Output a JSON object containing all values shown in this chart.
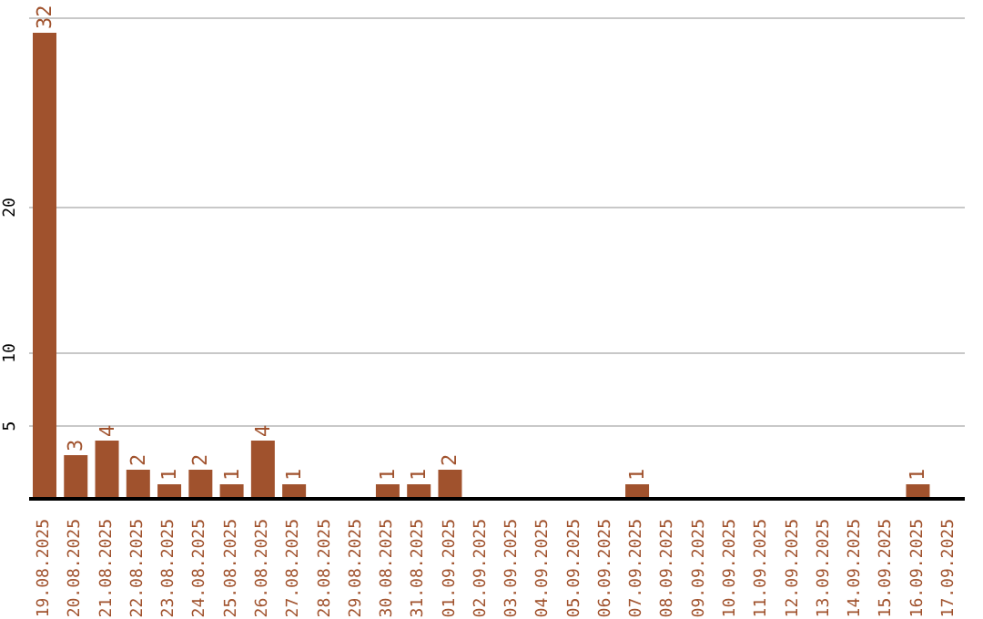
{
  "chart_data": {
    "type": "bar",
    "categories": [
      "19.08.2025",
      "20.08.2025",
      "21.08.2025",
      "22.08.2025",
      "23.08.2025",
      "24.08.2025",
      "25.08.2025",
      "26.08.2025",
      "27.08.2025",
      "28.08.2025",
      "29.08.2025",
      "30.08.2025",
      "31.08.2025",
      "01.09.2025",
      "02.09.2025",
      "03.09.2025",
      "04.09.2025",
      "05.09.2025",
      "06.09.2025",
      "07.09.2025",
      "08.09.2025",
      "09.09.2025",
      "10.09.2025",
      "11.09.2025",
      "12.09.2025",
      "13.09.2025",
      "14.09.2025",
      "15.09.2025",
      "16.09.2025",
      "17.09.2025"
    ],
    "values": [
      32,
      3,
      4,
      2,
      1,
      2,
      1,
      4,
      1,
      0,
      0,
      1,
      1,
      2,
      0,
      0,
      0,
      0,
      0,
      1,
      0,
      0,
      0,
      0,
      0,
      0,
      0,
      0,
      1,
      0
    ],
    "value_labels": [
      "32",
      "3",
      "4",
      "2",
      "1",
      "2",
      "1",
      "4",
      "1",
      null,
      null,
      "1",
      "1",
      "2",
      null,
      null,
      null,
      null,
      null,
      "1",
      null,
      null,
      null,
      null,
      null,
      null,
      null,
      null,
      "1",
      null
    ],
    "color": "#a0522d",
    "ylim": [
      0,
      33
    ],
    "yticks": [
      5,
      10,
      20
    ],
    "grid": "y"
  }
}
